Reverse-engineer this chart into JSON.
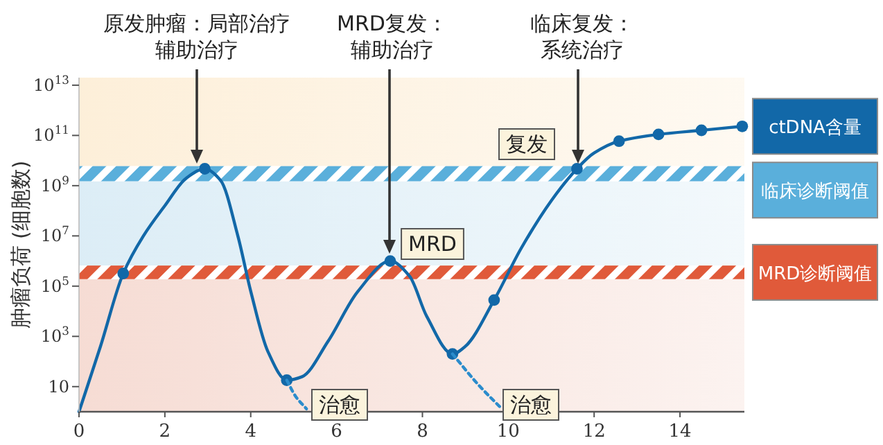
{
  "chart_data": {
    "type": "line",
    "ylabel": "肿瘤负荷 (细胞数)",
    "log": "y",
    "grid": false,
    "legend": "right",
    "xlim": [
      0,
      15.5
    ],
    "ylim": [
      1,
      20000000000000.0
    ],
    "xticks": [
      0,
      2,
      4,
      6,
      8,
      10,
      12,
      14
    ],
    "yticks": [
      {
        "value": 10,
        "label": "10"
      },
      {
        "value": 1000,
        "label": "10$^{3}$"
      },
      {
        "value": 100000,
        "label": "10$^{5}$"
      },
      {
        "value": 10000000,
        "label": "10$^{7}$"
      },
      {
        "value": 1000000000,
        "label": "10$^{9}$"
      },
      {
        "value": 100000000000,
        "label": "10$^{11}$"
      },
      {
        "value": 10000000000000,
        "label": "10$^{13}$"
      }
    ],
    "bands": [
      {
        "axis": "y",
        "from": 1,
        "to": 190000,
        "color": "#f6dcd4"
      },
      {
        "axis": "y",
        "from": 660000,
        "to": 1500000000,
        "color": "#dcedf6"
      },
      {
        "axis": "y",
        "from": 6000000000,
        "to": 20000000000000.0,
        "color": "#fdefd9"
      },
      {
        "axis": "y",
        "from": 1500000000,
        "to": 6000000000,
        "label": "临床诊断阈值",
        "color": "#5aafdb"
      },
      {
        "axis": "y",
        "from": 190000,
        "to": 660000,
        "label": "MRD诊断阈值",
        "color": "#e05a3a"
      }
    ],
    "series": [
      {
        "name": "ctDNA含量",
        "color": "#1268a8",
        "x": [
          0,
          0.5,
          1.03,
          1.5,
          2.0,
          2.5,
          2.93,
          3.3,
          3.7,
          4.0,
          4.4,
          4.84,
          5.2,
          5.8,
          6.5,
          7.25,
          7.7,
          8.1,
          8.7,
          9.0,
          9.67,
          10.3,
          11.0,
          11.6,
          12.0,
          12.58,
          13.5,
          14.5,
          15.45
        ],
        "values": [
          1,
          400,
          320000,
          10000000,
          160000000,
          2000000000,
          4700000000,
          1600000000,
          10000000,
          63000,
          250,
          18,
          25,
          630,
          63000,
          1000000,
          250000,
          6300,
          200,
          400,
          28000,
          3200000,
          250000000,
          4700000000,
          20000000000,
          59000000000,
          110000000000,
          160000000000,
          230000000000
        ]
      },
      {
        "type": "scatter",
        "marker": "circle",
        "color": "#1268a8",
        "x": [
          1.03,
          2.93,
          4.84,
          7.25,
          8.7,
          9.67,
          11.6,
          12.58,
          13.5,
          14.5,
          15.45
        ],
        "values": [
          320000,
          4700000000,
          18,
          1000000,
          200,
          28000,
          4700000000,
          59000000000,
          110000000000,
          160000000000,
          230000000000
        ]
      },
      {
        "type": "line",
        "line_style": "dotted",
        "color": "#2b8ccc",
        "x": [
          4.84,
          5.05,
          5.3
        ],
        "values": [
          18,
          4,
          1.3
        ]
      },
      {
        "type": "line",
        "line_style": "dotted",
        "color": "#2b8ccc",
        "x": [
          8.7,
          9.3,
          9.85
        ],
        "values": [
          200,
          12,
          1.3
        ]
      }
    ],
    "annotations": [
      "原发肿瘤：局部治疗辅助治疗",
      "MRD复发：辅助治疗",
      "临床复发：系统治疗",
      "复发",
      "MRD",
      "治愈",
      "治愈"
    ]
  }
}
